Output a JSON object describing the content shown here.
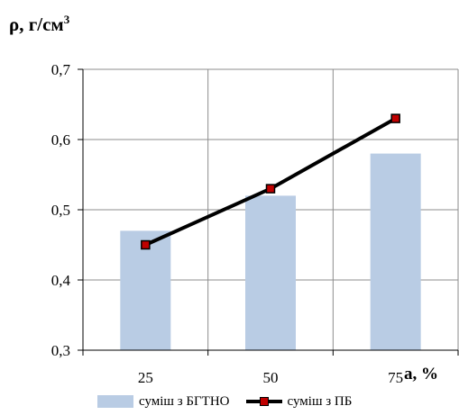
{
  "chart_data": {
    "type": "bar+line",
    "ylabel_main": "ρ, г/см",
    "ylabel_sup": "3",
    "xlabel": "a, %",
    "categories": [
      "25",
      "50",
      "75"
    ],
    "ylim": [
      0.3,
      0.7
    ],
    "yticks": [
      "0,3",
      "0,4",
      "0,5",
      "0,6",
      "0,7"
    ],
    "grid": true,
    "legend_position": "bottom",
    "series": [
      {
        "name": "суміш з БГТНО",
        "kind": "bar",
        "color": "#b9cce4",
        "values": [
          0.47,
          0.52,
          0.58
        ]
      },
      {
        "name": "суміш з ПБ",
        "kind": "line",
        "color": "#000000",
        "marker_color": "#c00000",
        "values": [
          0.45,
          0.53,
          0.63
        ]
      }
    ]
  }
}
